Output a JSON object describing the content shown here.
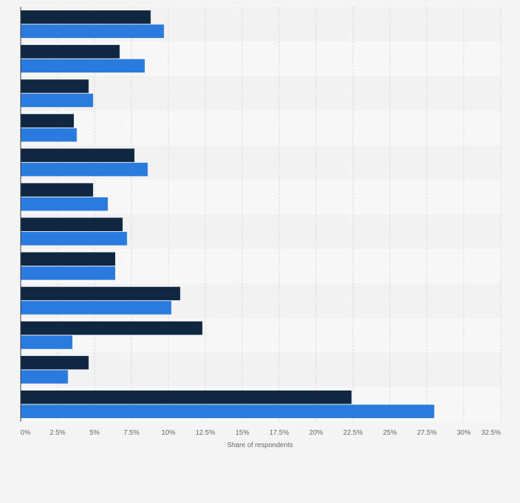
{
  "chart_data": {
    "type": "bar",
    "orientation": "horizontal",
    "categories": [
      "",
      "",
      "",
      "",
      "",
      "",
      "",
      "",
      "",
      "",
      "",
      ""
    ],
    "series": [
      {
        "color": "#0f2741",
        "values": [
          8.8,
          6.7,
          4.6,
          3.6,
          7.7,
          4.9,
          6.9,
          6.4,
          10.8,
          12.3,
          4.6,
          22.4
        ]
      },
      {
        "color": "#2b7bdf",
        "values": [
          9.7,
          8.4,
          4.9,
          3.8,
          8.6,
          5.9,
          7.2,
          6.4,
          10.2,
          3.5,
          3.2,
          28.0
        ]
      }
    ],
    "xlabel": "Share of respondents",
    "xlim": [
      0,
      32.5
    ],
    "xticks": [
      "0%",
      "2.5%",
      "5%",
      "7.5%",
      "10%",
      "12.5%",
      "15%",
      "17.5%",
      "20%",
      "22.5%",
      "25%",
      "27.5%",
      "30%",
      "32.5%"
    ],
    "grid": true,
    "legend": "none"
  }
}
